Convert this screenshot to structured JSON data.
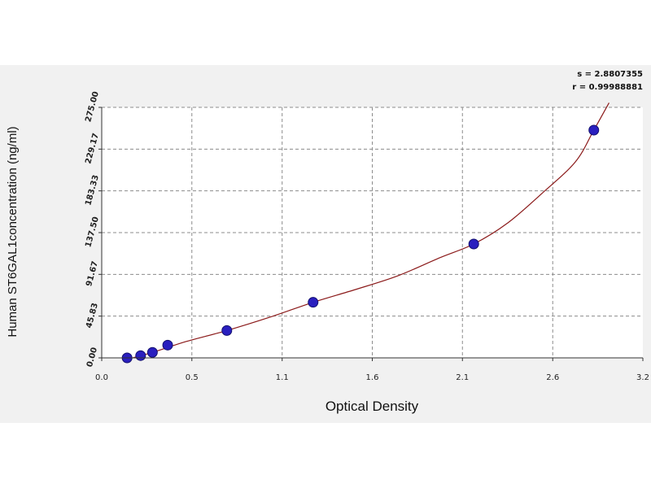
{
  "chart_data": {
    "type": "scatter",
    "xlabel": "Optical Density",
    "ylabel": "Human  ST6GAL1concentration (ng/ml)",
    "xlim": [
      0.0,
      3.2
    ],
    "ylim": [
      0.0,
      275.0
    ],
    "x_ticks": [
      "0.0",
      "0.5",
      "1.1",
      "1.6",
      "2.1",
      "2.6",
      "3.2"
    ],
    "x_tick_values": [
      0.0,
      0.533,
      1.067,
      1.6,
      2.133,
      2.667,
      3.2
    ],
    "y_ticks": [
      "0.00",
      "45.83",
      "91.67",
      "137.50",
      "183.33",
      "229.17",
      "275.00"
    ],
    "y_tick_values": [
      0.0,
      45.83,
      91.67,
      137.5,
      183.33,
      229.17,
      275.0
    ],
    "grid": true,
    "stats": [
      "s = 2.8807355",
      "r = 0.99988881"
    ],
    "points": {
      "x": [
        0.15,
        0.23,
        0.3,
        0.39,
        0.74,
        1.25,
        2.2,
        2.91
      ],
      "y": [
        0.0,
        2.5,
        6.0,
        14.0,
        30.0,
        61.0,
        125.0,
        250.0
      ]
    },
    "curve": {
      "x": [
        0.1,
        0.3,
        0.5,
        0.74,
        1.0,
        1.25,
        1.5,
        1.75,
        2.0,
        2.2,
        2.4,
        2.6,
        2.8,
        2.91,
        3.0
      ],
      "y": [
        -4.0,
        6.0,
        18.0,
        30.0,
        45.0,
        61.0,
        75.0,
        90.0,
        110.0,
        125.0,
        148.0,
        180.0,
        215.0,
        250.0,
        280.0
      ]
    },
    "point_color": "#2a1fbf",
    "curve_color": "#8b1a1a"
  }
}
